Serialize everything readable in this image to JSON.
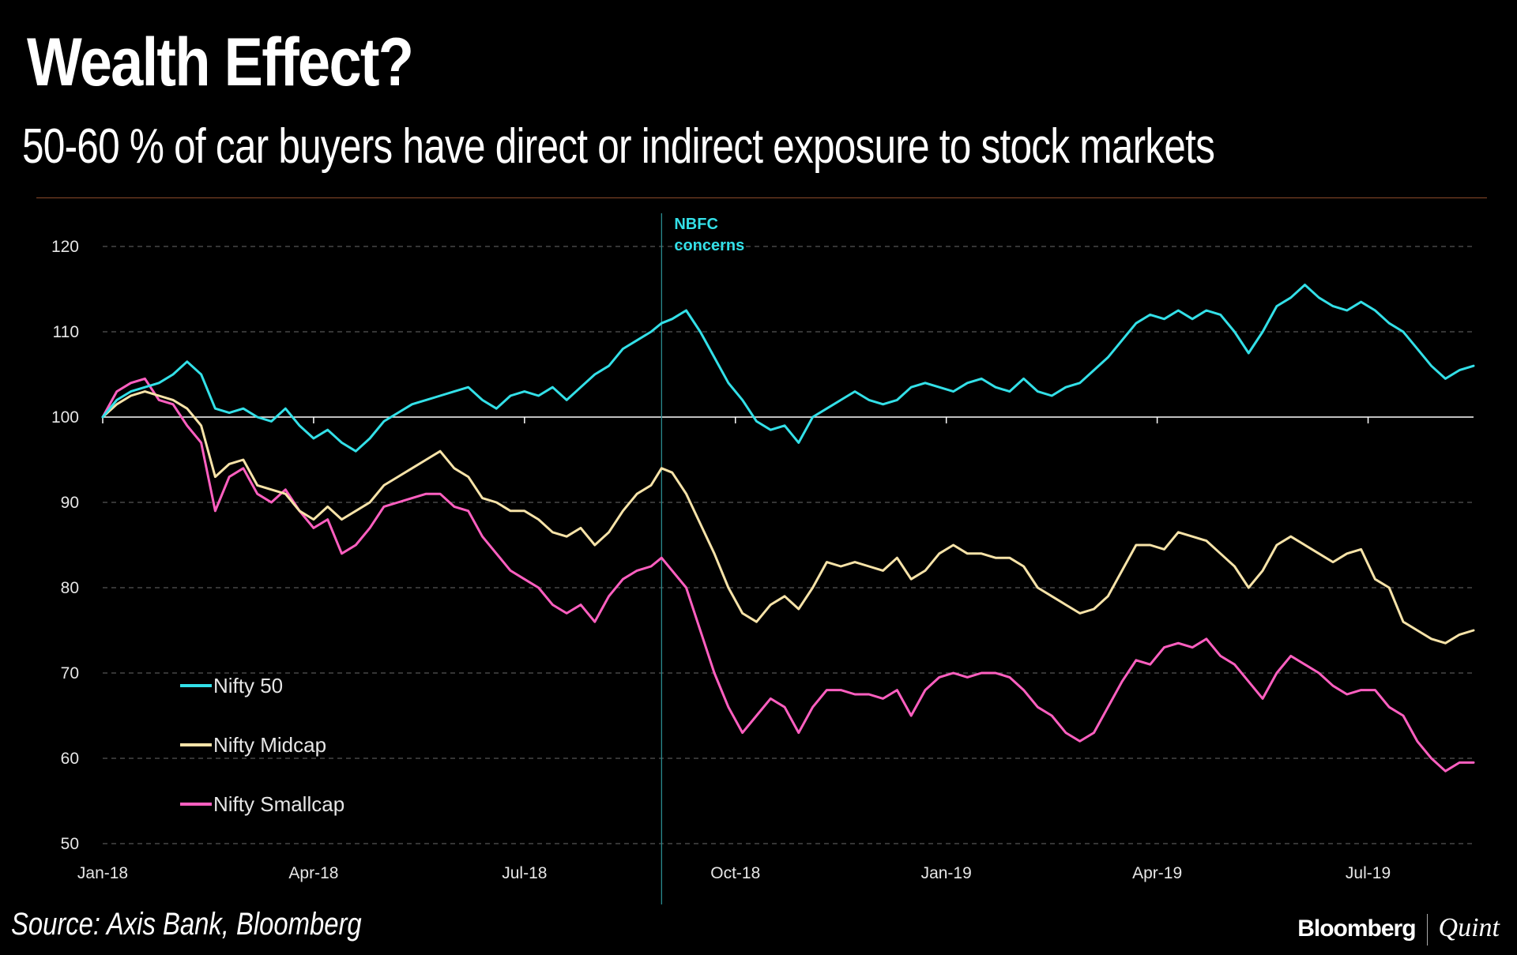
{
  "title": "Wealth Effect?",
  "subtitle": "50-60 % of car buyers have direct or indirect exposure to stock markets",
  "source": "Source: Axis Bank, Bloomberg",
  "brand": {
    "primary": "Bloomberg",
    "secondary": "Quint"
  },
  "chart_data": {
    "type": "line",
    "title": "Wealth Effect?",
    "xlabel": "",
    "ylabel": "",
    "ylim": [
      50,
      120
    ],
    "yticks": [
      50,
      60,
      70,
      80,
      90,
      100,
      110,
      120
    ],
    "xlim": [
      0,
      19.5
    ],
    "xticks": [
      {
        "x": 0,
        "label": "Jan-18"
      },
      {
        "x": 3,
        "label": "Apr-18"
      },
      {
        "x": 6,
        "label": "Jul-18"
      },
      {
        "x": 9,
        "label": "Oct-18"
      },
      {
        "x": 12,
        "label": "Jan-19"
      },
      {
        "x": 15,
        "label": "Apr-19"
      },
      {
        "x": 18,
        "label": "Jul-19"
      }
    ],
    "baseline": 100,
    "grid": true,
    "annotation": {
      "x": 7.95,
      "label_lines": [
        "NBFC",
        "concerns"
      ]
    },
    "legend_position": "lower-left",
    "series": [
      {
        "name": "Nifty 50",
        "color": "#33e0e8",
        "x": [
          0,
          0.2,
          0.4,
          0.6,
          0.8,
          1.0,
          1.2,
          1.4,
          1.6,
          1.8,
          2.0,
          2.2,
          2.4,
          2.6,
          2.8,
          3.0,
          3.2,
          3.4,
          3.6,
          3.8,
          4.0,
          4.2,
          4.4,
          4.6,
          4.8,
          5.0,
          5.2,
          5.4,
          5.6,
          5.8,
          6.0,
          6.2,
          6.4,
          6.6,
          6.8,
          7.0,
          7.2,
          7.4,
          7.6,
          7.8,
          7.95,
          8.1,
          8.3,
          8.5,
          8.7,
          8.9,
          9.1,
          9.3,
          9.5,
          9.7,
          9.9,
          10.1,
          10.3,
          10.5,
          10.7,
          10.9,
          11.1,
          11.3,
          11.5,
          11.7,
          11.9,
          12.1,
          12.3,
          12.5,
          12.7,
          12.9,
          13.1,
          13.3,
          13.5,
          13.7,
          13.9,
          14.1,
          14.3,
          14.5,
          14.7,
          14.9,
          15.1,
          15.3,
          15.5,
          15.7,
          15.9,
          16.1,
          16.3,
          16.5,
          16.7,
          16.9,
          17.1,
          17.3,
          17.5,
          17.7,
          17.9,
          18.1,
          18.3,
          18.5,
          18.7,
          18.9,
          19.1,
          19.3,
          19.5
        ],
        "values": [
          100,
          102,
          103,
          103.5,
          104,
          105,
          106.5,
          105,
          101,
          100.5,
          101,
          100,
          99.5,
          101,
          99,
          97.5,
          98.5,
          97,
          96,
          97.5,
          99.5,
          100.5,
          101.5,
          102,
          102.5,
          103,
          103.5,
          102,
          101,
          102.5,
          103,
          102.5,
          103.5,
          102,
          103.5,
          105,
          106,
          108,
          109,
          110,
          111,
          111.5,
          112.5,
          110,
          107,
          104,
          102,
          99.5,
          98.5,
          99,
          97,
          100,
          101,
          102,
          103,
          102,
          101.5,
          102,
          103.5,
          104,
          103.5,
          103,
          104,
          104.5,
          103.5,
          103,
          104.5,
          103,
          102.5,
          103.5,
          104,
          105.5,
          107,
          109,
          111,
          112,
          111.5,
          112.5,
          111.5,
          112.5,
          112,
          110,
          107.5,
          110,
          113,
          114,
          115.5,
          114,
          113,
          112.5,
          113.5,
          112.5,
          111,
          110,
          108,
          106,
          104.5,
          105.5,
          106
        ]
      },
      {
        "name": "Nifty Midcap",
        "color": "#f7e3a8",
        "x": [
          0,
          0.2,
          0.4,
          0.6,
          0.8,
          1.0,
          1.2,
          1.4,
          1.6,
          1.8,
          2.0,
          2.2,
          2.4,
          2.6,
          2.8,
          3.0,
          3.2,
          3.4,
          3.6,
          3.8,
          4.0,
          4.2,
          4.4,
          4.6,
          4.8,
          5.0,
          5.2,
          5.4,
          5.6,
          5.8,
          6.0,
          6.2,
          6.4,
          6.6,
          6.8,
          7.0,
          7.2,
          7.4,
          7.6,
          7.8,
          7.95,
          8.1,
          8.3,
          8.5,
          8.7,
          8.9,
          9.1,
          9.3,
          9.5,
          9.7,
          9.9,
          10.1,
          10.3,
          10.5,
          10.7,
          10.9,
          11.1,
          11.3,
          11.5,
          11.7,
          11.9,
          12.1,
          12.3,
          12.5,
          12.7,
          12.9,
          13.1,
          13.3,
          13.5,
          13.7,
          13.9,
          14.1,
          14.3,
          14.5,
          14.7,
          14.9,
          15.1,
          15.3,
          15.5,
          15.7,
          15.9,
          16.1,
          16.3,
          16.5,
          16.7,
          16.9,
          17.1,
          17.3,
          17.5,
          17.7,
          17.9,
          18.1,
          18.3,
          18.5,
          18.7,
          18.9,
          19.1,
          19.3,
          19.5
        ],
        "values": [
          100,
          101.5,
          102.5,
          103,
          102.5,
          102,
          101,
          99,
          93,
          94.5,
          95,
          92,
          91.5,
          91,
          89,
          88,
          89.5,
          88,
          89,
          90,
          92,
          93,
          94,
          95,
          96,
          94,
          93,
          90.5,
          90,
          89,
          89,
          88,
          86.5,
          86,
          87,
          85,
          86.5,
          89,
          91,
          92,
          94,
          93.5,
          91,
          87.5,
          84,
          80,
          77,
          76,
          78,
          79,
          77.5,
          80,
          83,
          82.5,
          83,
          82.5,
          82,
          83.5,
          81,
          82,
          84,
          85,
          84,
          84,
          83.5,
          83.5,
          82.5,
          80,
          79,
          78,
          77,
          77.5,
          79,
          82,
          85,
          85,
          84.5,
          86.5,
          86,
          85.5,
          84,
          82.5,
          80,
          82,
          85,
          86,
          85,
          84,
          83,
          84,
          84.5,
          81,
          80,
          76,
          75,
          74,
          73.5,
          74.5,
          75
        ]
      },
      {
        "name": "Nifty Smallcap",
        "color": "#ff5fc0",
        "x": [
          0,
          0.2,
          0.4,
          0.6,
          0.8,
          1.0,
          1.2,
          1.4,
          1.6,
          1.8,
          2.0,
          2.2,
          2.4,
          2.6,
          2.8,
          3.0,
          3.2,
          3.4,
          3.6,
          3.8,
          4.0,
          4.2,
          4.4,
          4.6,
          4.8,
          5.0,
          5.2,
          5.4,
          5.6,
          5.8,
          6.0,
          6.2,
          6.4,
          6.6,
          6.8,
          7.0,
          7.2,
          7.4,
          7.6,
          7.8,
          7.95,
          8.1,
          8.3,
          8.5,
          8.7,
          8.9,
          9.1,
          9.3,
          9.5,
          9.7,
          9.9,
          10.1,
          10.3,
          10.5,
          10.7,
          10.9,
          11.1,
          11.3,
          11.5,
          11.7,
          11.9,
          12.1,
          12.3,
          12.5,
          12.7,
          12.9,
          13.1,
          13.3,
          13.5,
          13.7,
          13.9,
          14.1,
          14.3,
          14.5,
          14.7,
          14.9,
          15.1,
          15.3,
          15.5,
          15.7,
          15.9,
          16.1,
          16.3,
          16.5,
          16.7,
          16.9,
          17.1,
          17.3,
          17.5,
          17.7,
          17.9,
          18.1,
          18.3,
          18.5,
          18.7,
          18.9,
          19.1,
          19.3,
          19.5
        ],
        "values": [
          100,
          103,
          104,
          104.5,
          102,
          101.5,
          99,
          97,
          89,
          93,
          94,
          91,
          90,
          91.5,
          89,
          87,
          88,
          84,
          85,
          87,
          89.5,
          90,
          90.5,
          91,
          91,
          89.5,
          89,
          86,
          84,
          82,
          81,
          80,
          78,
          77,
          78,
          76,
          79,
          81,
          82,
          82.5,
          83.5,
          82,
          80,
          75,
          70,
          66,
          63,
          65,
          67,
          66,
          63,
          66,
          68,
          68,
          67.5,
          67.5,
          67,
          68,
          65,
          68,
          69.5,
          70,
          69.5,
          70,
          70,
          69.5,
          68,
          66,
          65,
          63,
          62,
          63,
          66,
          69,
          71.5,
          71,
          73,
          73.5,
          73,
          74,
          72,
          71,
          69,
          67,
          70,
          72,
          71,
          70,
          68.5,
          67.5,
          68,
          68,
          66,
          65,
          62,
          60,
          58.5,
          59.5,
          59.5
        ]
      }
    ]
  }
}
